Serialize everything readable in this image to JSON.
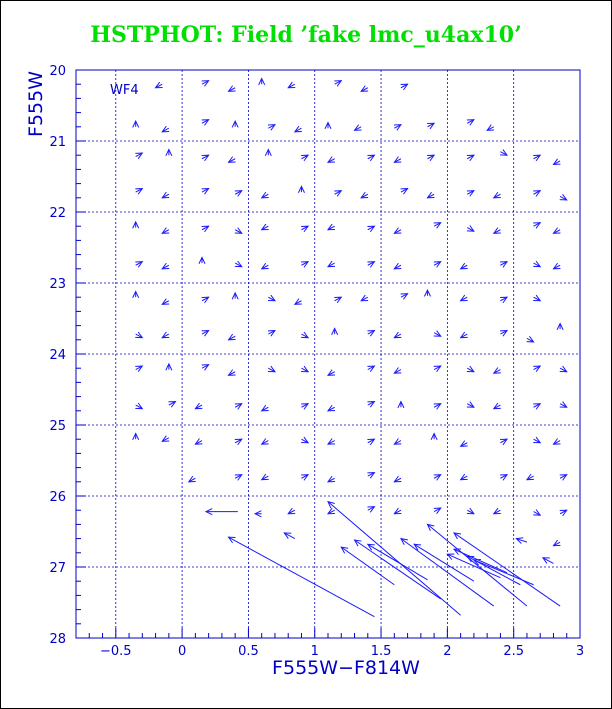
{
  "title": "HSTPHOT: Field ’fake lmc_u4ax10’",
  "colors": {
    "title": "#00e000",
    "axes": "#0000c8",
    "grid": "#0000c8",
    "vectors": "#1a1aff"
  },
  "chart_data": {
    "type": "scatter",
    "subtype": "vector-field",
    "panel_label": "WF4",
    "xlabel": "F555W−F814W",
    "ylabel": "F555W",
    "xlim": [
      -0.8,
      3.0
    ],
    "ylim": [
      28,
      20
    ],
    "y_inverted": true,
    "x_ticks": [
      "−0.5",
      "0",
      "0.5",
      "1",
      "1.5",
      "2",
      "2.5",
      "3"
    ],
    "x_tick_values": [
      -0.5,
      0,
      0.5,
      1,
      1.5,
      2,
      2.5,
      3
    ],
    "y_ticks": [
      "20",
      "21",
      "22",
      "23",
      "24",
      "25",
      "26",
      "27",
      "28"
    ],
    "y_tick_values": [
      20,
      21,
      22,
      23,
      24,
      25,
      26,
      27,
      28
    ],
    "grid": true,
    "vectors_note": "arrows from input (tail) to recovered (head) position",
    "long_vectors": [
      {
        "x0": 1.45,
        "y0": 27.7,
        "x1": 0.35,
        "y1": 26.58
      },
      {
        "x0": 2.1,
        "y0": 27.68,
        "x1": 1.1,
        "y1": 26.08
      },
      {
        "x0": 1.95,
        "y0": 27.45,
        "x1": 1.3,
        "y1": 26.62
      },
      {
        "x0": 2.35,
        "y0": 27.55,
        "x1": 1.65,
        "y1": 26.6
      },
      {
        "x0": 1.6,
        "y0": 27.25,
        "x1": 1.2,
        "y1": 26.72
      },
      {
        "x0": 1.85,
        "y0": 27.18,
        "x1": 1.4,
        "y1": 26.68
      },
      {
        "x0": 2.6,
        "y0": 27.55,
        "x1": 1.85,
        "y1": 26.4
      },
      {
        "x0": 2.85,
        "y0": 27.55,
        "x1": 2.05,
        "y1": 26.52
      },
      {
        "x0": 2.2,
        "y0": 27.2,
        "x1": 1.75,
        "y1": 26.68
      },
      {
        "x0": 2.55,
        "y0": 27.25,
        "x1": 2.15,
        "y1": 26.85
      },
      {
        "x0": 2.65,
        "y0": 27.25,
        "x1": 2.2,
        "y1": 26.9
      },
      {
        "x0": 0.42,
        "y0": 26.22,
        "x1": 0.18,
        "y1": 26.22
      },
      {
        "x0": 2.45,
        "y0": 27.08,
        "x1": 2.05,
        "y1": 26.75
      },
      {
        "x0": 2.4,
        "y0": 27.15,
        "x1": 2.0,
        "y1": 26.82
      }
    ],
    "short_vectors": [
      {
        "x": -0.15,
        "y": 20.2,
        "dx": -0.05,
        "dy": 0.05
      },
      {
        "x": 0.15,
        "y": 20.2,
        "dx": 0.05,
        "dy": -0.05
      },
      {
        "x": 0.4,
        "y": 20.25,
        "dx": -0.05,
        "dy": 0.05
      },
      {
        "x": 0.6,
        "y": 20.2,
        "dx": 0.0,
        "dy": -0.08
      },
      {
        "x": 0.85,
        "y": 20.2,
        "dx": -0.05,
        "dy": 0.05
      },
      {
        "x": 1.15,
        "y": 20.2,
        "dx": 0.05,
        "dy": -0.05
      },
      {
        "x": 1.4,
        "y": 20.25,
        "dx": -0.05,
        "dy": 0.05
      },
      {
        "x": 1.65,
        "y": 20.25,
        "dx": 0.05,
        "dy": -0.05
      },
      {
        "x": -0.35,
        "y": 20.8,
        "dx": 0.0,
        "dy": -0.08
      },
      {
        "x": -0.1,
        "y": 20.82,
        "dx": -0.05,
        "dy": 0.05
      },
      {
        "x": 0.15,
        "y": 20.75,
        "dx": 0.05,
        "dy": -0.05
      },
      {
        "x": 0.4,
        "y": 20.8,
        "dx": 0.0,
        "dy": -0.08
      },
      {
        "x": 0.65,
        "y": 20.82,
        "dx": 0.05,
        "dy": -0.05
      },
      {
        "x": 0.9,
        "y": 20.82,
        "dx": -0.05,
        "dy": 0.05
      },
      {
        "x": 1.1,
        "y": 20.82,
        "dx": 0.0,
        "dy": -0.08
      },
      {
        "x": 1.35,
        "y": 20.8,
        "dx": -0.05,
        "dy": 0.05
      },
      {
        "x": 1.6,
        "y": 20.82,
        "dx": 0.05,
        "dy": -0.05
      },
      {
        "x": 1.85,
        "y": 20.8,
        "dx": 0.05,
        "dy": -0.05
      },
      {
        "x": 2.15,
        "y": 20.75,
        "dx": 0.05,
        "dy": -0.05
      },
      {
        "x": 2.35,
        "y": 20.8,
        "dx": -0.05,
        "dy": 0.05
      },
      {
        "x": -0.35,
        "y": 21.22,
        "dx": 0.05,
        "dy": -0.05
      },
      {
        "x": -0.1,
        "y": 21.2,
        "dx": 0.0,
        "dy": -0.08
      },
      {
        "x": 0.15,
        "y": 21.25,
        "dx": 0.05,
        "dy": -0.05
      },
      {
        "x": 0.4,
        "y": 21.25,
        "dx": -0.05,
        "dy": 0.05
      },
      {
        "x": 0.65,
        "y": 21.2,
        "dx": 0.0,
        "dy": -0.08
      },
      {
        "x": 0.9,
        "y": 21.25,
        "dx": 0.05,
        "dy": -0.05
      },
      {
        "x": 1.15,
        "y": 21.25,
        "dx": -0.05,
        "dy": 0.05
      },
      {
        "x": 1.4,
        "y": 21.25,
        "dx": 0.05,
        "dy": -0.05
      },
      {
        "x": 1.65,
        "y": 21.25,
        "dx": -0.05,
        "dy": 0.05
      },
      {
        "x": 1.85,
        "y": 21.25,
        "dx": 0.05,
        "dy": -0.05
      },
      {
        "x": 2.15,
        "y": 21.25,
        "dx": 0.05,
        "dy": -0.05
      },
      {
        "x": 2.4,
        "y": 21.15,
        "dx": 0.05,
        "dy": 0.05
      },
      {
        "x": 2.65,
        "y": 21.25,
        "dx": 0.05,
        "dy": -0.05
      },
      {
        "x": 2.85,
        "y": 21.28,
        "dx": -0.05,
        "dy": 0.05
      },
      {
        "x": -0.35,
        "y": 21.72,
        "dx": 0.05,
        "dy": -0.05
      },
      {
        "x": -0.1,
        "y": 21.75,
        "dx": -0.05,
        "dy": 0.05
      },
      {
        "x": 0.15,
        "y": 21.72,
        "dx": 0.05,
        "dy": -0.05
      },
      {
        "x": 0.4,
        "y": 21.75,
        "dx": 0.05,
        "dy": -0.05
      },
      {
        "x": 0.65,
        "y": 21.75,
        "dx": -0.05,
        "dy": 0.05
      },
      {
        "x": 0.9,
        "y": 21.72,
        "dx": 0.0,
        "dy": -0.08
      },
      {
        "x": 1.15,
        "y": 21.75,
        "dx": 0.05,
        "dy": -0.05
      },
      {
        "x": 1.4,
        "y": 21.75,
        "dx": -0.05,
        "dy": 0.05
      },
      {
        "x": 1.65,
        "y": 21.72,
        "dx": 0.05,
        "dy": -0.05
      },
      {
        "x": 1.9,
        "y": 21.75,
        "dx": -0.05,
        "dy": 0.05
      },
      {
        "x": 2.15,
        "y": 21.75,
        "dx": 0.05,
        "dy": -0.05
      },
      {
        "x": 2.4,
        "y": 21.75,
        "dx": -0.05,
        "dy": 0.05
      },
      {
        "x": 2.65,
        "y": 21.75,
        "dx": 0.05,
        "dy": -0.05
      },
      {
        "x": 2.85,
        "y": 21.78,
        "dx": 0.05,
        "dy": 0.05
      },
      {
        "x": -0.35,
        "y": 22.22,
        "dx": 0.0,
        "dy": -0.08
      },
      {
        "x": -0.1,
        "y": 22.25,
        "dx": -0.05,
        "dy": 0.05
      },
      {
        "x": 0.15,
        "y": 22.25,
        "dx": 0.05,
        "dy": -0.05
      },
      {
        "x": 0.4,
        "y": 22.25,
        "dx": 0.05,
        "dy": 0.05
      },
      {
        "x": 0.65,
        "y": 22.2,
        "dx": -0.05,
        "dy": 0.05
      },
      {
        "x": 0.9,
        "y": 22.25,
        "dx": 0.05,
        "dy": -0.05
      },
      {
        "x": 1.15,
        "y": 22.2,
        "dx": -0.05,
        "dy": 0.05
      },
      {
        "x": 1.4,
        "y": 22.25,
        "dx": 0.05,
        "dy": -0.05
      },
      {
        "x": 1.65,
        "y": 22.25,
        "dx": -0.05,
        "dy": 0.05
      },
      {
        "x": 1.9,
        "y": 22.2,
        "dx": 0.05,
        "dy": -0.05
      },
      {
        "x": 2.15,
        "y": 22.22,
        "dx": 0.05,
        "dy": 0.05
      },
      {
        "x": 2.4,
        "y": 22.25,
        "dx": -0.05,
        "dy": 0.05
      },
      {
        "x": 2.65,
        "y": 22.2,
        "dx": 0.05,
        "dy": -0.05
      },
      {
        "x": 2.85,
        "y": 22.25,
        "dx": -0.05,
        "dy": 0.05
      },
      {
        "x": -0.35,
        "y": 22.75,
        "dx": 0.05,
        "dy": -0.05
      },
      {
        "x": -0.1,
        "y": 22.75,
        "dx": -0.05,
        "dy": 0.05
      },
      {
        "x": 0.15,
        "y": 22.72,
        "dx": 0.0,
        "dy": -0.08
      },
      {
        "x": 0.4,
        "y": 22.72,
        "dx": 0.05,
        "dy": 0.05
      },
      {
        "x": 0.65,
        "y": 22.75,
        "dx": -0.05,
        "dy": 0.05
      },
      {
        "x": 0.9,
        "y": 22.75,
        "dx": 0.05,
        "dy": -0.05
      },
      {
        "x": 1.15,
        "y": 22.72,
        "dx": -0.05,
        "dy": 0.05
      },
      {
        "x": 1.4,
        "y": 22.75,
        "dx": 0.05,
        "dy": -0.05
      },
      {
        "x": 1.65,
        "y": 22.75,
        "dx": -0.05,
        "dy": 0.05
      },
      {
        "x": 1.9,
        "y": 22.75,
        "dx": 0.05,
        "dy": -0.05
      },
      {
        "x": 2.15,
        "y": 22.75,
        "dx": -0.05,
        "dy": 0.05
      },
      {
        "x": 2.4,
        "y": 22.75,
        "dx": 0.05,
        "dy": -0.05
      },
      {
        "x": 2.65,
        "y": 22.72,
        "dx": 0.05,
        "dy": 0.05
      },
      {
        "x": 2.85,
        "y": 22.75,
        "dx": -0.05,
        "dy": 0.05
      },
      {
        "x": -0.35,
        "y": 23.2,
        "dx": 0.0,
        "dy": -0.08
      },
      {
        "x": -0.1,
        "y": 23.25,
        "dx": -0.05,
        "dy": 0.05
      },
      {
        "x": 0.15,
        "y": 23.25,
        "dx": 0.05,
        "dy": -0.05
      },
      {
        "x": 0.4,
        "y": 23.22,
        "dx": 0.0,
        "dy": -0.08
      },
      {
        "x": 0.65,
        "y": 23.2,
        "dx": 0.05,
        "dy": 0.05
      },
      {
        "x": 0.9,
        "y": 23.25,
        "dx": -0.05,
        "dy": 0.05
      },
      {
        "x": 1.15,
        "y": 23.25,
        "dx": 0.05,
        "dy": -0.05
      },
      {
        "x": 1.4,
        "y": 23.2,
        "dx": -0.05,
        "dy": 0.05
      },
      {
        "x": 1.65,
        "y": 23.2,
        "dx": 0.05,
        "dy": -0.05
      },
      {
        "x": 1.85,
        "y": 23.18,
        "dx": 0.0,
        "dy": -0.08
      },
      {
        "x": 2.15,
        "y": 23.2,
        "dx": -0.05,
        "dy": 0.05
      },
      {
        "x": 2.4,
        "y": 23.25,
        "dx": 0.05,
        "dy": -0.05
      },
      {
        "x": 2.65,
        "y": 23.2,
        "dx": 0.05,
        "dy": 0.05
      },
      {
        "x": -0.35,
        "y": 23.72,
        "dx": 0.05,
        "dy": 0.05
      },
      {
        "x": -0.1,
        "y": 23.72,
        "dx": -0.05,
        "dy": 0.05
      },
      {
        "x": 0.15,
        "y": 23.72,
        "dx": 0.05,
        "dy": -0.05
      },
      {
        "x": 0.4,
        "y": 23.75,
        "dx": -0.05,
        "dy": 0.05
      },
      {
        "x": 0.65,
        "y": 23.72,
        "dx": 0.05,
        "dy": -0.05
      },
      {
        "x": 0.9,
        "y": 23.72,
        "dx": 0.05,
        "dy": 0.05
      },
      {
        "x": 1.15,
        "y": 23.72,
        "dx": 0.0,
        "dy": -0.08
      },
      {
        "x": 1.4,
        "y": 23.72,
        "dx": 0.05,
        "dy": -0.05
      },
      {
        "x": 1.65,
        "y": 23.72,
        "dx": -0.05,
        "dy": 0.05
      },
      {
        "x": 1.9,
        "y": 23.7,
        "dx": 0.05,
        "dy": 0.05
      },
      {
        "x": 2.15,
        "y": 23.72,
        "dx": -0.05,
        "dy": 0.05
      },
      {
        "x": 2.4,
        "y": 23.72,
        "dx": 0.05,
        "dy": -0.05
      },
      {
        "x": 2.6,
        "y": 23.78,
        "dx": 0.05,
        "dy": 0.05
      },
      {
        "x": 2.85,
        "y": 23.65,
        "dx": 0.0,
        "dy": -0.08
      },
      {
        "x": -0.35,
        "y": 24.22,
        "dx": 0.05,
        "dy": -0.05
      },
      {
        "x": -0.1,
        "y": 24.22,
        "dx": 0.0,
        "dy": -0.08
      },
      {
        "x": 0.15,
        "y": 24.2,
        "dx": 0.05,
        "dy": -0.05
      },
      {
        "x": 0.4,
        "y": 24.25,
        "dx": -0.05,
        "dy": 0.05
      },
      {
        "x": 0.65,
        "y": 24.2,
        "dx": 0.05,
        "dy": 0.05
      },
      {
        "x": 0.9,
        "y": 24.2,
        "dx": 0.05,
        "dy": 0.05
      },
      {
        "x": 1.15,
        "y": 24.25,
        "dx": -0.05,
        "dy": 0.05
      },
      {
        "x": 1.4,
        "y": 24.22,
        "dx": 0.05,
        "dy": -0.05
      },
      {
        "x": 1.65,
        "y": 24.22,
        "dx": -0.05,
        "dy": 0.05
      },
      {
        "x": 1.9,
        "y": 24.22,
        "dx": 0.05,
        "dy": -0.05
      },
      {
        "x": 2.15,
        "y": 24.2,
        "dx": 0.05,
        "dy": 0.05
      },
      {
        "x": 2.4,
        "y": 24.22,
        "dx": -0.05,
        "dy": 0.05
      },
      {
        "x": 2.65,
        "y": 24.22,
        "dx": 0.05,
        "dy": -0.05
      },
      {
        "x": 2.85,
        "y": 24.2,
        "dx": 0.05,
        "dy": 0.05
      },
      {
        "x": -0.35,
        "y": 24.72,
        "dx": 0.05,
        "dy": 0.05
      },
      {
        "x": -0.1,
        "y": 24.72,
        "dx": 0.05,
        "dy": -0.05
      },
      {
        "x": 0.15,
        "y": 24.72,
        "dx": -0.05,
        "dy": 0.05
      },
      {
        "x": 0.4,
        "y": 24.75,
        "dx": 0.05,
        "dy": -0.05
      },
      {
        "x": 0.65,
        "y": 24.75,
        "dx": -0.05,
        "dy": 0.05
      },
      {
        "x": 0.9,
        "y": 24.75,
        "dx": 0.05,
        "dy": -0.05
      },
      {
        "x": 1.15,
        "y": 24.75,
        "dx": -0.05,
        "dy": 0.05
      },
      {
        "x": 1.4,
        "y": 24.72,
        "dx": 0.05,
        "dy": -0.05
      },
      {
        "x": 1.65,
        "y": 24.75,
        "dx": 0.0,
        "dy": -0.08
      },
      {
        "x": 1.9,
        "y": 24.75,
        "dx": 0.05,
        "dy": -0.05
      },
      {
        "x": 2.15,
        "y": 24.7,
        "dx": 0.05,
        "dy": 0.05
      },
      {
        "x": 2.4,
        "y": 24.72,
        "dx": -0.05,
        "dy": 0.05
      },
      {
        "x": 2.65,
        "y": 24.75,
        "dx": 0.05,
        "dy": -0.05
      },
      {
        "x": 2.85,
        "y": 24.7,
        "dx": 0.05,
        "dy": 0.05
      },
      {
        "x": -0.35,
        "y": 25.2,
        "dx": 0.0,
        "dy": -0.08
      },
      {
        "x": -0.1,
        "y": 25.18,
        "dx": -0.05,
        "dy": 0.05
      },
      {
        "x": 0.15,
        "y": 25.22,
        "dx": -0.05,
        "dy": 0.05
      },
      {
        "x": 0.4,
        "y": 25.25,
        "dx": 0.05,
        "dy": -0.05
      },
      {
        "x": 0.65,
        "y": 25.22,
        "dx": -0.05,
        "dy": 0.05
      },
      {
        "x": 0.9,
        "y": 25.2,
        "dx": 0.05,
        "dy": 0.05
      },
      {
        "x": 1.15,
        "y": 25.22,
        "dx": -0.05,
        "dy": 0.05
      },
      {
        "x": 1.4,
        "y": 25.25,
        "dx": 0.05,
        "dy": -0.05
      },
      {
        "x": 1.65,
        "y": 25.22,
        "dx": -0.05,
        "dy": 0.05
      },
      {
        "x": 1.9,
        "y": 25.2,
        "dx": 0.0,
        "dy": -0.08
      },
      {
        "x": 2.15,
        "y": 25.25,
        "dx": -0.05,
        "dy": 0.05
      },
      {
        "x": 2.4,
        "y": 25.25,
        "dx": 0.05,
        "dy": -0.05
      },
      {
        "x": 2.65,
        "y": 25.2,
        "dx": 0.05,
        "dy": 0.05
      },
      {
        "x": 2.85,
        "y": 25.22,
        "dx": -0.05,
        "dy": 0.05
      },
      {
        "x": 0.1,
        "y": 25.75,
        "dx": -0.05,
        "dy": 0.05
      },
      {
        "x": 0.4,
        "y": 25.75,
        "dx": 0.05,
        "dy": -0.05
      },
      {
        "x": 0.65,
        "y": 25.72,
        "dx": -0.05,
        "dy": 0.05
      },
      {
        "x": 0.9,
        "y": 25.75,
        "dx": 0.05,
        "dy": -0.05
      },
      {
        "x": 1.15,
        "y": 25.75,
        "dx": -0.05,
        "dy": 0.05
      },
      {
        "x": 1.4,
        "y": 25.72,
        "dx": 0.05,
        "dy": -0.05
      },
      {
        "x": 1.65,
        "y": 25.75,
        "dx": -0.05,
        "dy": 0.05
      },
      {
        "x": 1.9,
        "y": 25.75,
        "dx": 0.05,
        "dy": -0.05
      },
      {
        "x": 2.15,
        "y": 25.72,
        "dx": -0.05,
        "dy": 0.05
      },
      {
        "x": 2.4,
        "y": 25.75,
        "dx": 0.05,
        "dy": -0.05
      },
      {
        "x": 2.65,
        "y": 25.72,
        "dx": -0.05,
        "dy": 0.05
      },
      {
        "x": 2.85,
        "y": 25.75,
        "dx": 0.05,
        "dy": -0.05
      },
      {
        "x": 0.6,
        "y": 26.25,
        "dx": -0.05,
        "dy": 0.0
      },
      {
        "x": 0.85,
        "y": 26.2,
        "dx": -0.05,
        "dy": 0.05
      },
      {
        "x": 1.15,
        "y": 26.2,
        "dx": -0.05,
        "dy": 0.05
      },
      {
        "x": 1.4,
        "y": 26.2,
        "dx": 0.05,
        "dy": -0.05
      },
      {
        "x": 1.65,
        "y": 26.2,
        "dx": -0.05,
        "dy": 0.05
      },
      {
        "x": 1.9,
        "y": 26.22,
        "dx": 0.05,
        "dy": -0.05
      },
      {
        "x": 2.15,
        "y": 26.2,
        "dx": 0.05,
        "dy": 0.05
      },
      {
        "x": 2.4,
        "y": 26.2,
        "dx": -0.05,
        "dy": 0.05
      },
      {
        "x": 2.65,
        "y": 26.22,
        "dx": 0.05,
        "dy": 0.05
      },
      {
        "x": 2.85,
        "y": 26.25,
        "dx": 0.05,
        "dy": -0.05
      },
      {
        "x": 0.85,
        "y": 26.6,
        "dx": -0.08,
        "dy": -0.08
      },
      {
        "x": 2.6,
        "y": 26.65,
        "dx": -0.08,
        "dy": -0.05
      },
      {
        "x": 2.85,
        "y": 26.65,
        "dx": -0.05,
        "dy": 0.05
      },
      {
        "x": 2.8,
        "y": 26.95,
        "dx": -0.08,
        "dy": -0.08
      }
    ]
  }
}
